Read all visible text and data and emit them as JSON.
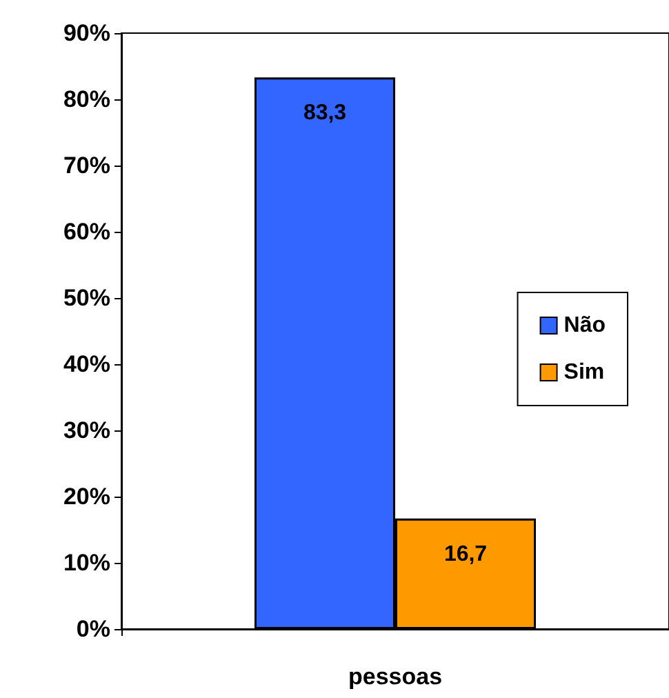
{
  "chart_data": {
    "type": "bar",
    "xlabel": "pessoas",
    "categories": [
      null
    ],
    "series": [
      {
        "name": "Não",
        "color": "#3366ff",
        "values": [
          83.3
        ],
        "value_labels": [
          "83,3"
        ]
      },
      {
        "name": "Sim",
        "color": "#ff9900",
        "values": [
          16.7
        ],
        "value_labels": [
          "16,7"
        ]
      }
    ],
    "ylim": [
      0,
      90
    ],
    "yticks": [
      {
        "value": 0,
        "label": "0%"
      },
      {
        "value": 10,
        "label": "10%"
      },
      {
        "value": 20,
        "label": "20%"
      },
      {
        "value": 30,
        "label": "30%"
      },
      {
        "value": 40,
        "label": "40%"
      },
      {
        "value": 50,
        "label": "50%"
      },
      {
        "value": 60,
        "label": "60%"
      },
      {
        "value": 70,
        "label": "70%"
      },
      {
        "value": 80,
        "label": "80%"
      },
      {
        "value": 90,
        "label": "90%"
      }
    ],
    "grid": false,
    "legend": "right"
  }
}
